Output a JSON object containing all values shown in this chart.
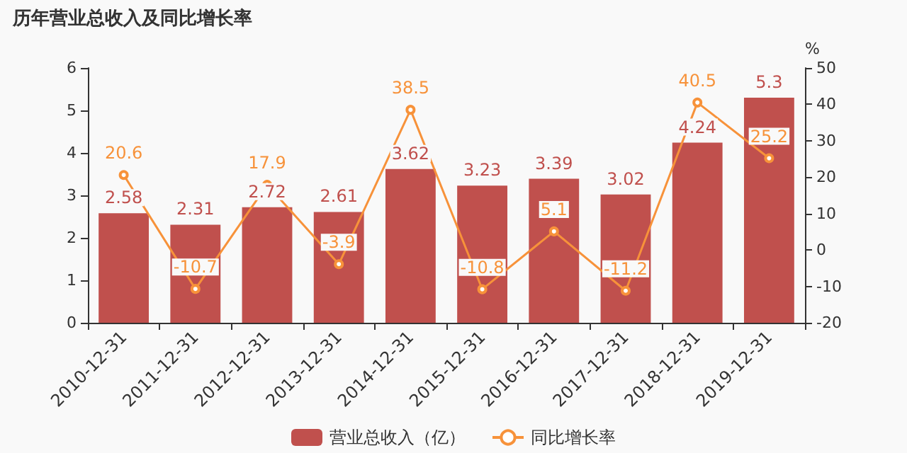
{
  "chart_data": {
    "type": "bar",
    "title": "历年营业总收入及同比增长率",
    "y2label": "%",
    "categories": [
      "2010-12-31",
      "2011-12-31",
      "2012-12-31",
      "2013-12-31",
      "2014-12-31",
      "2015-12-31",
      "2016-12-31",
      "2017-12-31",
      "2018-12-31",
      "2019-12-31"
    ],
    "series": [
      {
        "name": "营业总收入（亿）",
        "color": "#c0504d",
        "values": [
          2.58,
          2.31,
          2.72,
          2.61,
          3.62,
          3.23,
          3.39,
          3.02,
          4.24,
          5.3
        ]
      },
      {
        "name": "同比增长率",
        "type": "line",
        "axis": "y2",
        "color": "#f7923a",
        "marker": "circle",
        "values": [
          20.6,
          -10.7,
          17.9,
          -3.9,
          38.5,
          -10.8,
          5.1,
          -11.2,
          40.5,
          25.2
        ]
      }
    ],
    "ylim": [
      0,
      6
    ],
    "yticks": [
      0,
      1,
      2,
      3,
      4,
      5,
      6
    ],
    "y2lim": [
      -20,
      50
    ],
    "y2ticks": [
      -20,
      -10,
      0,
      10,
      20,
      30,
      40,
      50
    ],
    "data_labels": true,
    "grid": false,
    "legend": "bottom"
  }
}
